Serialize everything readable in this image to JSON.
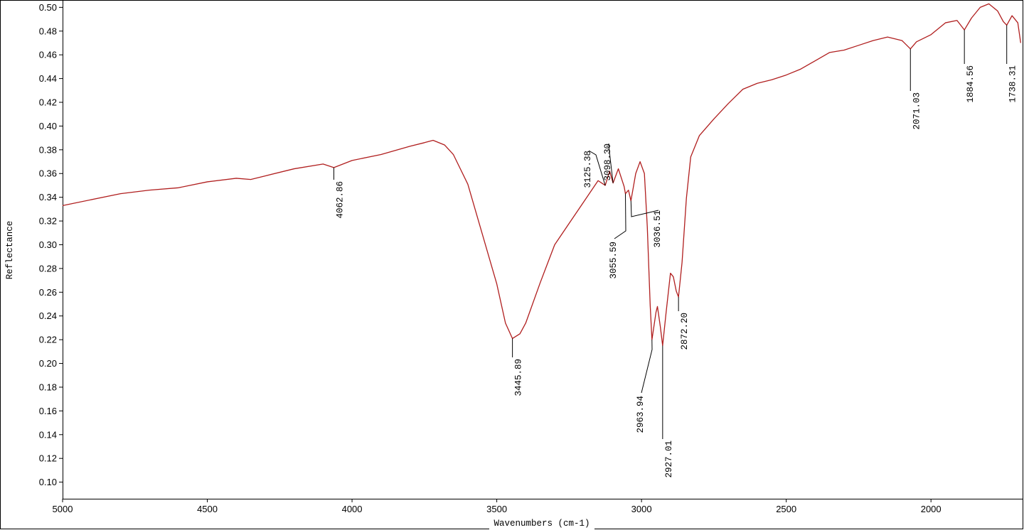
{
  "chart_data": {
    "type": "line",
    "y_label": "Reflectance",
    "x_label": "Wavenumbers (cm-1)",
    "color": "#b01e1e",
    "xlim": [
      5000,
      1686
    ],
    "ylim": [
      0.086,
      0.505
    ],
    "xticks": [
      5000,
      4500,
      4000,
      3500,
      3000,
      2500,
      2000
    ],
    "yticks": [
      {
        "value": 0.1,
        "label": "0.10"
      },
      0.12,
      0.14,
      0.16,
      0.18,
      {
        "value": 0.2,
        "label": "0.20"
      },
      0.22,
      0.24,
      0.26,
      0.28,
      {
        "value": 0.3,
        "label": "0.30"
      },
      0.32,
      0.34,
      0.36,
      0.38,
      {
        "value": 0.4,
        "label": "0.40"
      },
      0.42,
      0.44,
      0.46,
      0.48,
      {
        "value": 0.5,
        "label": "0.50"
      }
    ],
    "x": [
      5000,
      4800,
      4700,
      4600,
      4500,
      4400,
      4350,
      4300,
      4200,
      4100,
      4062.86,
      4000,
      3900,
      3800,
      3750,
      3720,
      3680,
      3650,
      3600,
      3550,
      3500,
      3470,
      3445.89,
      3420,
      3400,
      3350,
      3300,
      3250,
      3200,
      3150,
      3125.38,
      3110,
      3098.3,
      3080,
      3060,
      3055.59,
      3045,
      3036.51,
      3020,
      3005,
      2990,
      2980,
      2970,
      2963.94,
      2950,
      2945,
      2935,
      2927.01,
      2915,
      2900,
      2890,
      2880,
      2872.2,
      2860,
      2845,
      2830,
      2800,
      2750,
      2700,
      2650,
      2600,
      2550,
      2500,
      2450,
      2400,
      2350,
      2300,
      2250,
      2200,
      2150,
      2100,
      2071.03,
      2050,
      2000,
      1950,
      1910,
      1884.56,
      1860,
      1830,
      1800,
      1770,
      1750,
      1738.31,
      1720,
      1700,
      1690
    ],
    "values": [
      0.333,
      0.343,
      0.346,
      0.348,
      0.353,
      0.356,
      0.355,
      0.358,
      0.364,
      0.368,
      0.365,
      0.371,
      0.376,
      0.383,
      0.386,
      0.388,
      0.384,
      0.376,
      0.351,
      0.309,
      0.267,
      0.234,
      0.221,
      0.225,
      0.234,
      0.268,
      0.3,
      0.318,
      0.336,
      0.354,
      0.35,
      0.362,
      0.352,
      0.364,
      0.349,
      0.343,
      0.346,
      0.337,
      0.36,
      0.37,
      0.36,
      0.315,
      0.249,
      0.22,
      0.243,
      0.248,
      0.231,
      0.215,
      0.243,
      0.276,
      0.273,
      0.261,
      0.256,
      0.285,
      0.339,
      0.374,
      0.392,
      0.406,
      0.419,
      0.431,
      0.436,
      0.439,
      0.443,
      0.448,
      0.455,
      0.462,
      0.464,
      0.468,
      0.472,
      0.475,
      0.472,
      0.465,
      0.471,
      0.477,
      0.487,
      0.489,
      0.481,
      0.491,
      0.5,
      0.503,
      0.497,
      0.488,
      0.485,
      0.493,
      0.487,
      0.47
    ],
    "peaks": {
      "x": [
        4062.86,
        3445.89,
        3125.38,
        3098.3,
        3055.59,
        3036.51,
        2963.94,
        2927.01,
        2872.2,
        2071.03,
        1884.56,
        1738.31
      ],
      "values": [
        0.365,
        0.221,
        0.35,
        0.352,
        0.343,
        0.337,
        0.22,
        0.215,
        0.256,
        0.465,
        0.481,
        0.485
      ],
      "labels": [
        "4062.86",
        "3445.89",
        "3125.38",
        "3098.30",
        "3055.59",
        "3036.51",
        "2963.94",
        "2927.01",
        "2872.20",
        "2071.03",
        "1884.56",
        "1738.31"
      ]
    }
  }
}
